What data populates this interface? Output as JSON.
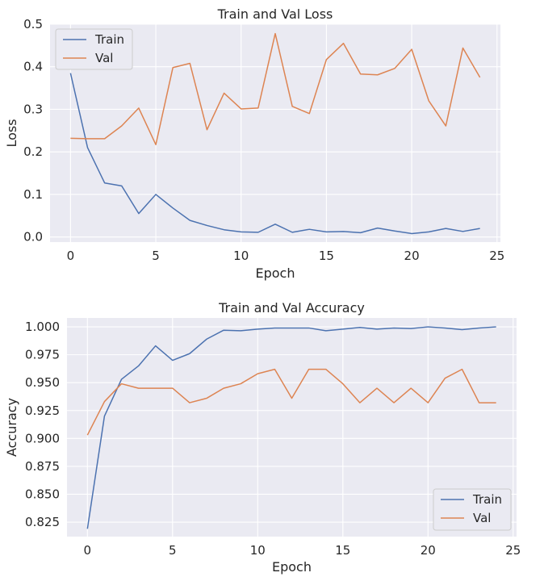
{
  "chart_data": [
    {
      "type": "line",
      "title": "Train and Val Loss",
      "xlabel": "Epoch",
      "ylabel": "Loss",
      "xlim": [
        -1.2,
        25.2
      ],
      "ylim": [
        -0.012,
        0.5
      ],
      "xticks": [
        0,
        5,
        10,
        15,
        20,
        25
      ],
      "yticks": [
        0.0,
        0.1,
        0.2,
        0.3,
        0.4,
        0.5
      ],
      "ytick_labels": [
        "0.0",
        "0.1",
        "0.2",
        "0.3",
        "0.4",
        "0.5"
      ],
      "grid": true,
      "legend": "top-left",
      "x": [
        0,
        1,
        2,
        3,
        4,
        5,
        6,
        7,
        8,
        9,
        10,
        11,
        12,
        13,
        14,
        15,
        16,
        17,
        18,
        19,
        20,
        21,
        22,
        23,
        24
      ],
      "series": [
        {
          "name": "Train",
          "color": "#4c72b0",
          "values": [
            0.385,
            0.21,
            0.127,
            0.12,
            0.055,
            0.1,
            0.068,
            0.039,
            0.027,
            0.017,
            0.012,
            0.011,
            0.03,
            0.011,
            0.018,
            0.012,
            0.013,
            0.01,
            0.021,
            0.014,
            0.008,
            0.012,
            0.02,
            0.013,
            0.02
          ]
        },
        {
          "name": "Val",
          "color": "#dd8452",
          "values": [
            0.232,
            0.231,
            0.231,
            0.261,
            0.303,
            0.217,
            0.398,
            0.408,
            0.252,
            0.338,
            0.301,
            0.303,
            0.478,
            0.307,
            0.29,
            0.417,
            0.455,
            0.383,
            0.381,
            0.396,
            0.441,
            0.32,
            0.261,
            0.444,
            0.375
          ]
        }
      ]
    },
    {
      "type": "line",
      "title": "Train and Val Accuracy",
      "xlabel": "Epoch",
      "ylabel": "Accuracy",
      "xlim": [
        -1.2,
        25.2
      ],
      "ylim": [
        0.812,
        1.008
      ],
      "xticks": [
        0,
        5,
        10,
        15,
        20,
        25
      ],
      "yticks": [
        0.825,
        0.85,
        0.875,
        0.9,
        0.925,
        0.95,
        0.975,
        1.0
      ],
      "ytick_labels": [
        "0.825",
        "0.850",
        "0.875",
        "0.900",
        "0.925",
        "0.950",
        "0.975",
        "1.000"
      ],
      "grid": true,
      "legend": "bottom-right",
      "x": [
        0,
        1,
        2,
        3,
        4,
        5,
        6,
        7,
        8,
        9,
        10,
        11,
        12,
        13,
        14,
        15,
        16,
        17,
        18,
        19,
        20,
        21,
        22,
        23,
        24
      ],
      "series": [
        {
          "name": "Train",
          "color": "#4c72b0",
          "values": [
            0.819,
            0.92,
            0.953,
            0.965,
            0.983,
            0.97,
            0.976,
            0.989,
            0.997,
            0.9965,
            0.998,
            0.999,
            0.999,
            0.999,
            0.9965,
            0.998,
            0.9995,
            0.998,
            0.999,
            0.9985,
            1.0,
            0.999,
            0.9975,
            0.999,
            1.0
          ]
        },
        {
          "name": "Val",
          "color": "#dd8452",
          "values": [
            0.903,
            0.933,
            0.949,
            0.945,
            0.945,
            0.945,
            0.932,
            0.936,
            0.945,
            0.949,
            0.958,
            0.962,
            0.936,
            0.962,
            0.962,
            0.949,
            0.932,
            0.945,
            0.932,
            0.945,
            0.932,
            0.954,
            0.962,
            0.932,
            0.932
          ]
        }
      ]
    }
  ]
}
